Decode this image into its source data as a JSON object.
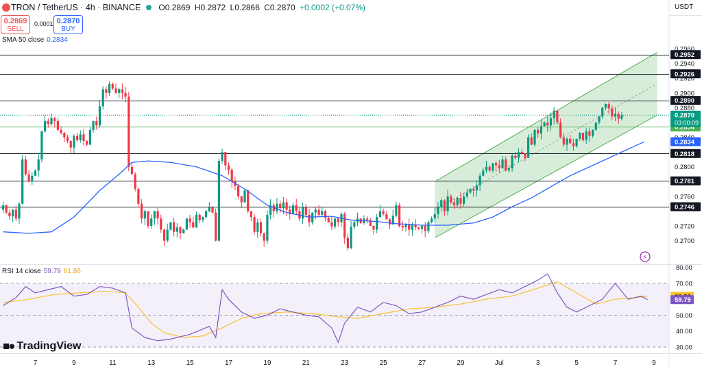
{
  "header": {
    "symbol": "TRON / TetherUS · 4h · BINANCE",
    "open": "O0.2869",
    "high": "H0.2872",
    "low": "L0.2866",
    "close": "C0.2870",
    "change": "+0.0002 (+0.07%)"
  },
  "trade": {
    "sell_price": "0.2869",
    "sell_label": "SELL",
    "spread": "0.0001",
    "buy_price": "0.2870",
    "buy_label": "BUY"
  },
  "currency": "USDT",
  "brand": "TradingView",
  "indicators": {
    "sma": {
      "label": "SMA 50 close",
      "value": "0.2834"
    },
    "rsi": {
      "label": "RSI 14 close",
      "value": "59.79",
      "ma_value": "61.86"
    }
  },
  "colors": {
    "up": "#089981",
    "down": "#f23645",
    "sma": "#2962ff",
    "rsi": "#7e57c2",
    "rsi_ma": "#fbc02d",
    "channel": "#4caf50",
    "level": "#131722"
  },
  "chart_data": [
    {
      "type": "candlestick",
      "title": "TRON / TetherUS 4h",
      "ylim": [
        0.2683,
        0.2986
      ],
      "yticks": [
        "0.2960",
        "0.2940",
        "0.2920",
        "0.2900",
        "0.2880",
        "0.2860",
        "0.2840",
        "0.2800",
        "0.2780",
        "0.2760",
        "0.2720",
        "0.2700"
      ],
      "xticks": [
        {
          "i": -2,
          "label": "5"
        },
        {
          "i": 10,
          "label": "7"
        },
        {
          "i": 22,
          "label": "9"
        },
        {
          "i": 34,
          "label": "11"
        },
        {
          "i": 46,
          "label": "13"
        },
        {
          "i": 58,
          "label": "15"
        },
        {
          "i": 70,
          "label": "17"
        },
        {
          "i": 82,
          "label": "19"
        },
        {
          "i": 94,
          "label": "21"
        },
        {
          "i": 106,
          "label": "23"
        },
        {
          "i": 118,
          "label": "25"
        },
        {
          "i": 130,
          "label": "27"
        },
        {
          "i": 142,
          "label": "29"
        },
        {
          "i": 154,
          "label": "Jul"
        },
        {
          "i": 166,
          "label": "3"
        },
        {
          "i": 178,
          "label": "5"
        },
        {
          "i": 190,
          "label": "7"
        },
        {
          "i": 202,
          "label": "9"
        }
      ],
      "close_start": 0.2742,
      "closes": [
        0.2748,
        0.2738,
        0.2733,
        0.2742,
        0.273,
        0.275,
        0.281,
        0.279,
        0.278,
        0.2788,
        0.2795,
        0.281,
        0.2848,
        0.2862,
        0.2858,
        0.2866,
        0.2862,
        0.285,
        0.2846,
        0.284,
        0.2835,
        0.2826,
        0.2842,
        0.2836,
        0.2844,
        0.2835,
        0.283,
        0.285,
        0.2862,
        0.2856,
        0.2882,
        0.2905,
        0.29,
        0.2912,
        0.2906,
        0.29,
        0.2905,
        0.29,
        0.2895,
        0.28,
        0.279,
        0.277,
        0.275,
        0.273,
        0.274,
        0.272,
        0.273,
        0.274,
        0.273,
        0.2715,
        0.27,
        0.2715,
        0.2725,
        0.2712,
        0.2718,
        0.271,
        0.2715,
        0.273,
        0.2725,
        0.2718,
        0.2735,
        0.2728,
        0.2732,
        0.274,
        0.2745,
        0.2738,
        0.27,
        0.2808,
        0.282,
        0.2802,
        0.2796,
        0.278,
        0.2774,
        0.276,
        0.2752,
        0.2768,
        0.274,
        0.2732,
        0.2712,
        0.2725,
        0.271,
        0.27,
        0.2735,
        0.2748,
        0.274,
        0.275,
        0.2744,
        0.2752,
        0.2742,
        0.2736,
        0.2748,
        0.274,
        0.273,
        0.2745,
        0.2735,
        0.2725,
        0.2738,
        0.2742,
        0.2735,
        0.274,
        0.2731,
        0.2725,
        0.2719,
        0.273,
        0.2725,
        0.2736,
        0.2704,
        0.269,
        0.2719,
        0.2725,
        0.273,
        0.2724,
        0.273,
        0.2728,
        0.272,
        0.2715,
        0.2732,
        0.274,
        0.2736,
        0.2729,
        0.2722,
        0.2734,
        0.2748,
        0.272,
        0.2718,
        0.2722,
        0.2715,
        0.2722,
        0.2718,
        0.2716,
        0.272,
        0.2713,
        0.2725,
        0.273,
        0.2736,
        0.2745,
        0.2755,
        0.274,
        0.276,
        0.2752,
        0.2748,
        0.2758,
        0.275,
        0.276,
        0.2765,
        0.277,
        0.2768,
        0.2775,
        0.2788,
        0.2795,
        0.28,
        0.2795,
        0.2805,
        0.2802,
        0.2798,
        0.281,
        0.2795,
        0.2798,
        0.2815,
        0.2812,
        0.282,
        0.2818,
        0.2812,
        0.284,
        0.283,
        0.285,
        0.2845,
        0.2855,
        0.286,
        0.2856,
        0.2866,
        0.2876,
        0.286,
        0.284,
        0.283,
        0.2838,
        0.2832,
        0.2828,
        0.2838,
        0.2846,
        0.2836,
        0.2848,
        0.2842,
        0.285,
        0.286,
        0.2868,
        0.288,
        0.2885,
        0.2879,
        0.2868,
        0.2872,
        0.2865,
        0.287
      ],
      "levels": [
        {
          "value": 0.2952,
          "label": "0.2952"
        },
        {
          "value": 0.2926,
          "label": "0.2926"
        },
        {
          "value": 0.289,
          "label": "0.2890"
        },
        {
          "value": 0.2818,
          "label": "0.2818"
        },
        {
          "value": 0.2781,
          "label": "0.2781"
        },
        {
          "value": 0.2746,
          "label": "0.2746"
        }
      ],
      "support_level": {
        "value": 0.2854,
        "label": "0.2854"
      },
      "last_price": {
        "value": 0.287,
        "label": "0.2870",
        "countdown": "03:00:09"
      },
      "sma_last": {
        "value": 0.2834,
        "label": "0.2834"
      },
      "channel": {
        "i_start": 134,
        "i_end": 203,
        "upper_start": 0.278,
        "upper_end": 0.2955,
        "lower_start": 0.2704,
        "lower_end": 0.287
      },
      "sma_series": [
        {
          "i": 0,
          "v": 0.2712
        },
        {
          "i": 8,
          "v": 0.271
        },
        {
          "i": 15,
          "v": 0.2712
        },
        {
          "i": 22,
          "v": 0.2732
        },
        {
          "i": 30,
          "v": 0.2768
        },
        {
          "i": 36,
          "v": 0.279
        },
        {
          "i": 40,
          "v": 0.2806
        },
        {
          "i": 45,
          "v": 0.2808
        },
        {
          "i": 52,
          "v": 0.2806
        },
        {
          "i": 60,
          "v": 0.28
        },
        {
          "i": 68,
          "v": 0.2788
        },
        {
          "i": 75,
          "v": 0.277
        },
        {
          "i": 82,
          "v": 0.2748
        },
        {
          "i": 88,
          "v": 0.2738
        },
        {
          "i": 95,
          "v": 0.2732
        },
        {
          "i": 102,
          "v": 0.2733
        },
        {
          "i": 108,
          "v": 0.2728
        },
        {
          "i": 116,
          "v": 0.2726
        },
        {
          "i": 122,
          "v": 0.2723
        },
        {
          "i": 130,
          "v": 0.2721
        },
        {
          "i": 138,
          "v": 0.2721
        },
        {
          "i": 146,
          "v": 0.2724
        },
        {
          "i": 152,
          "v": 0.2732
        },
        {
          "i": 158,
          "v": 0.2746
        },
        {
          "i": 164,
          "v": 0.2758
        },
        {
          "i": 170,
          "v": 0.2773
        },
        {
          "i": 176,
          "v": 0.2788
        },
        {
          "i": 182,
          "v": 0.28
        },
        {
          "i": 188,
          "v": 0.2812
        },
        {
          "i": 194,
          "v": 0.2824
        },
        {
          "i": 199,
          "v": 0.2834
        }
      ]
    },
    {
      "type": "line",
      "title": "RSI 14 close",
      "ylim": [
        27,
        82
      ],
      "yticks": [
        "80.00",
        "70.00",
        "50.00",
        "40.00",
        "30.00"
      ],
      "bands": [
        70,
        30
      ],
      "midline": 50,
      "rsi_last": {
        "value": 59.79,
        "label": "59.79"
      },
      "ma_last": {
        "value": 61.86,
        "label": "61.86"
      },
      "rsi_series": [
        {
          "i": 0,
          "v": 56
        },
        {
          "i": 4,
          "v": 61
        },
        {
          "i": 7,
          "v": 68
        },
        {
          "i": 10,
          "v": 64
        },
        {
          "i": 14,
          "v": 66
        },
        {
          "i": 18,
          "v": 68
        },
        {
          "i": 22,
          "v": 62
        },
        {
          "i": 26,
          "v": 63
        },
        {
          "i": 30,
          "v": 68
        },
        {
          "i": 34,
          "v": 67
        },
        {
          "i": 38,
          "v": 64
        },
        {
          "i": 40,
          "v": 42
        },
        {
          "i": 44,
          "v": 36
        },
        {
          "i": 48,
          "v": 34
        },
        {
          "i": 52,
          "v": 35
        },
        {
          "i": 58,
          "v": 38
        },
        {
          "i": 64,
          "v": 43
        },
        {
          "i": 66,
          "v": 36
        },
        {
          "i": 68,
          "v": 66
        },
        {
          "i": 70,
          "v": 60
        },
        {
          "i": 74,
          "v": 52
        },
        {
          "i": 78,
          "v": 48
        },
        {
          "i": 82,
          "v": 50
        },
        {
          "i": 86,
          "v": 54
        },
        {
          "i": 90,
          "v": 52
        },
        {
          "i": 94,
          "v": 50
        },
        {
          "i": 98,
          "v": 49
        },
        {
          "i": 102,
          "v": 42
        },
        {
          "i": 104,
          "v": 33
        },
        {
          "i": 106,
          "v": 45
        },
        {
          "i": 110,
          "v": 55
        },
        {
          "i": 114,
          "v": 52
        },
        {
          "i": 118,
          "v": 58
        },
        {
          "i": 122,
          "v": 56
        },
        {
          "i": 126,
          "v": 51
        },
        {
          "i": 130,
          "v": 52
        },
        {
          "i": 134,
          "v": 55
        },
        {
          "i": 138,
          "v": 58
        },
        {
          "i": 142,
          "v": 62
        },
        {
          "i": 146,
          "v": 60
        },
        {
          "i": 150,
          "v": 63
        },
        {
          "i": 154,
          "v": 66
        },
        {
          "i": 158,
          "v": 64
        },
        {
          "i": 162,
          "v": 68
        },
        {
          "i": 166,
          "v": 72
        },
        {
          "i": 169,
          "v": 76
        },
        {
          "i": 172,
          "v": 64
        },
        {
          "i": 175,
          "v": 55
        },
        {
          "i": 178,
          "v": 52
        },
        {
          "i": 182,
          "v": 56
        },
        {
          "i": 186,
          "v": 60
        },
        {
          "i": 190,
          "v": 70
        },
        {
          "i": 194,
          "v": 60
        },
        {
          "i": 198,
          "v": 62
        },
        {
          "i": 200,
          "v": 59.79
        }
      ],
      "ma_series": [
        {
          "i": 0,
          "v": 58
        },
        {
          "i": 8,
          "v": 60
        },
        {
          "i": 16,
          "v": 63
        },
        {
          "i": 24,
          "v": 64
        },
        {
          "i": 32,
          "v": 65
        },
        {
          "i": 38,
          "v": 64
        },
        {
          "i": 42,
          "v": 55
        },
        {
          "i": 46,
          "v": 45
        },
        {
          "i": 50,
          "v": 39
        },
        {
          "i": 56,
          "v": 36
        },
        {
          "i": 62,
          "v": 37
        },
        {
          "i": 68,
          "v": 42
        },
        {
          "i": 74,
          "v": 48
        },
        {
          "i": 80,
          "v": 51
        },
        {
          "i": 88,
          "v": 52
        },
        {
          "i": 96,
          "v": 51
        },
        {
          "i": 104,
          "v": 49
        },
        {
          "i": 110,
          "v": 48
        },
        {
          "i": 118,
          "v": 51
        },
        {
          "i": 126,
          "v": 54
        },
        {
          "i": 134,
          "v": 55
        },
        {
          "i": 142,
          "v": 57
        },
        {
          "i": 150,
          "v": 60
        },
        {
          "i": 158,
          "v": 62
        },
        {
          "i": 166,
          "v": 67
        },
        {
          "i": 172,
          "v": 71
        },
        {
          "i": 178,
          "v": 64
        },
        {
          "i": 184,
          "v": 57
        },
        {
          "i": 190,
          "v": 60
        },
        {
          "i": 196,
          "v": 61
        },
        {
          "i": 200,
          "v": 61.86
        }
      ]
    }
  ]
}
